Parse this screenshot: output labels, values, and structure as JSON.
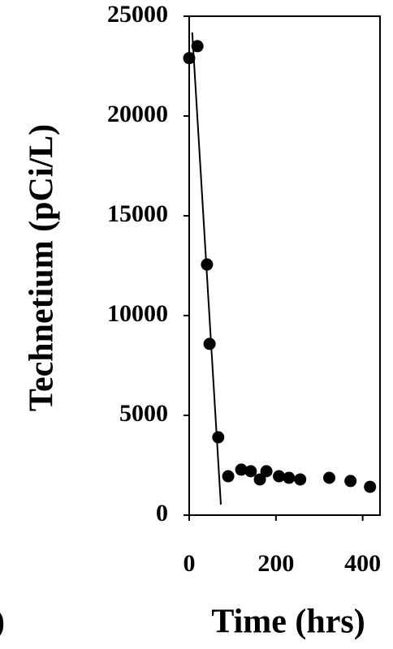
{
  "chart_data": {
    "type": "scatter",
    "x_label": "Time (hrs)",
    "y_label": "Technetium (pCi/L)",
    "panel_label_fragment": ")",
    "series": [
      {
        "color": "#000000",
        "x": [
          0,
          19,
          41,
          47,
          67,
          90,
          120,
          142,
          163,
          178,
          207,
          230,
          256,
          323,
          372,
          417
        ],
        "values": [
          22900,
          23500,
          12560,
          8580,
          3900,
          1950,
          2280,
          2200,
          1790,
          2200,
          1950,
          1870,
          1790,
          1870,
          1710,
          1420
        ]
      }
    ],
    "fit_line": {
      "color": "#000000",
      "x": [
        7,
        73
      ],
      "values": [
        24190,
        530
      ]
    },
    "xlim": [
      0,
      440
    ],
    "xticks": [
      0,
      200,
      400
    ],
    "ylim": [
      0,
      25000
    ],
    "yticks": [
      0,
      5000,
      10000,
      15000,
      20000,
      25000
    ],
    "grid": false
  }
}
